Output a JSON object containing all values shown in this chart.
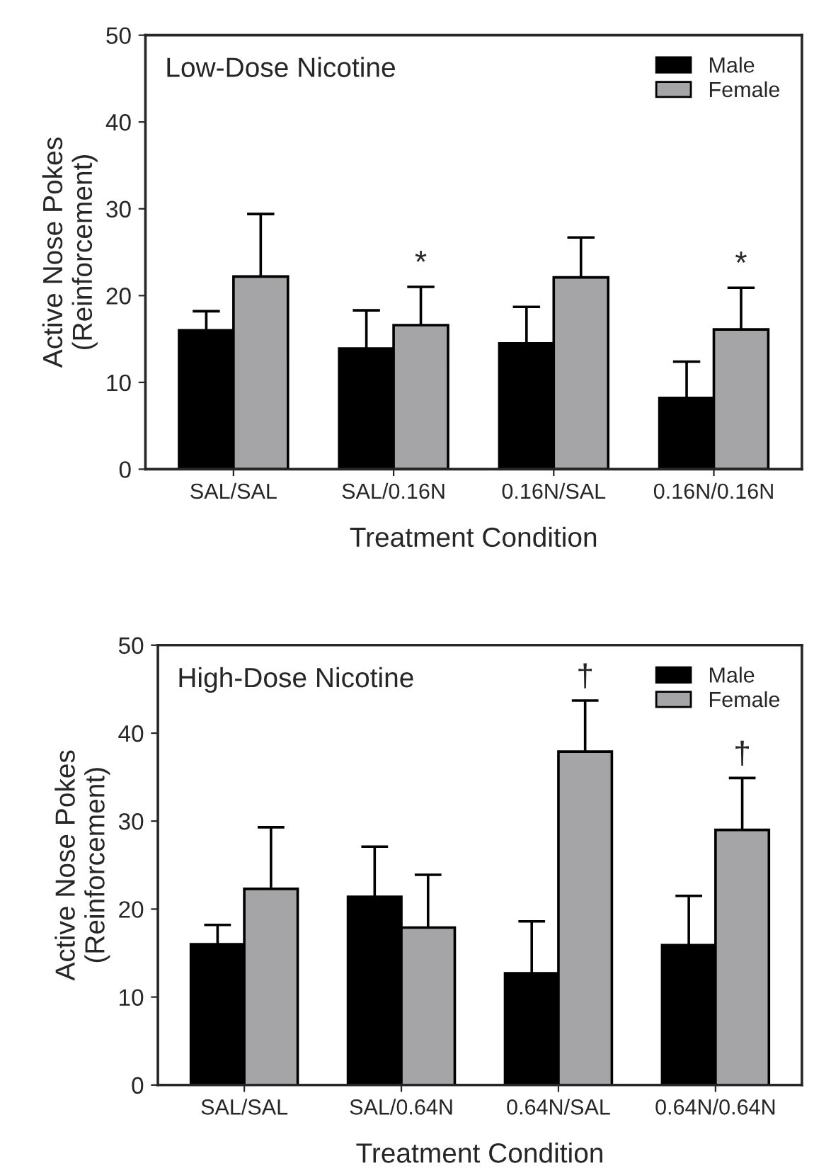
{
  "chart_data": [
    {
      "type": "bar",
      "title": "Low-Dose Nicotine",
      "xlabel": "Treatment Condition",
      "ylabel": "Active Nose Pokes\n(Reinforcement)",
      "categories": [
        "SAL/SAL",
        "SAL/0.16N",
        "0.16N/SAL",
        "0.16N/0.16N"
      ],
      "series": [
        {
          "name": "Male",
          "color": "#000000",
          "values": [
            16.0,
            13.9,
            14.5,
            8.2
          ],
          "errors": [
            [
              16.0,
              18.2
            ],
            [
              13.9,
              18.3
            ],
            [
              14.5,
              18.7
            ],
            [
              8.2,
              12.4
            ]
          ]
        },
        {
          "name": "Female",
          "color": "#a5a5a8",
          "values": [
            22.2,
            16.6,
            22.1,
            16.1
          ],
          "errors": [
            [
              22.2,
              29.4
            ],
            [
              16.6,
              21.0
            ],
            [
              22.1,
              26.7
            ],
            [
              16.1,
              20.9
            ]
          ]
        }
      ],
      "annotations": [
        "*",
        "*"
      ],
      "ylim": [
        0,
        50
      ],
      "yticks": [
        0,
        10,
        20,
        30,
        40,
        50
      ],
      "legend": "top right",
      "grid": false
    },
    {
      "type": "bar",
      "title": "High-Dose Nicotine",
      "xlabel": "Treatment Condition",
      "ylabel": "Active Nose Pokes\n(Reinforcement)",
      "categories": [
        "SAL/SAL",
        "SAL/0.64N",
        "0.64N/SAL",
        "0.64N/0.64N"
      ],
      "series": [
        {
          "name": "Male",
          "color": "#000000",
          "values": [
            16.0,
            21.4,
            12.7,
            15.9
          ],
          "errors": [
            [
              16.0,
              18.2
            ],
            [
              21.4,
              27.1
            ],
            [
              12.7,
              18.6
            ],
            [
              15.9,
              21.5
            ]
          ]
        },
        {
          "name": "Female",
          "color": "#a5a5a8",
          "values": [
            22.3,
            17.9,
            37.9,
            29.0
          ],
          "errors": [
            [
              22.3,
              29.3
            ],
            [
              17.9,
              23.9
            ],
            [
              37.9,
              43.7
            ],
            [
              29.0,
              34.9
            ]
          ]
        }
      ],
      "annotations": [
        "†",
        "†"
      ],
      "ylim": [
        0,
        50
      ],
      "yticks": [
        0,
        10,
        20,
        30,
        40,
        50
      ],
      "legend": "top right",
      "grid": false
    }
  ]
}
